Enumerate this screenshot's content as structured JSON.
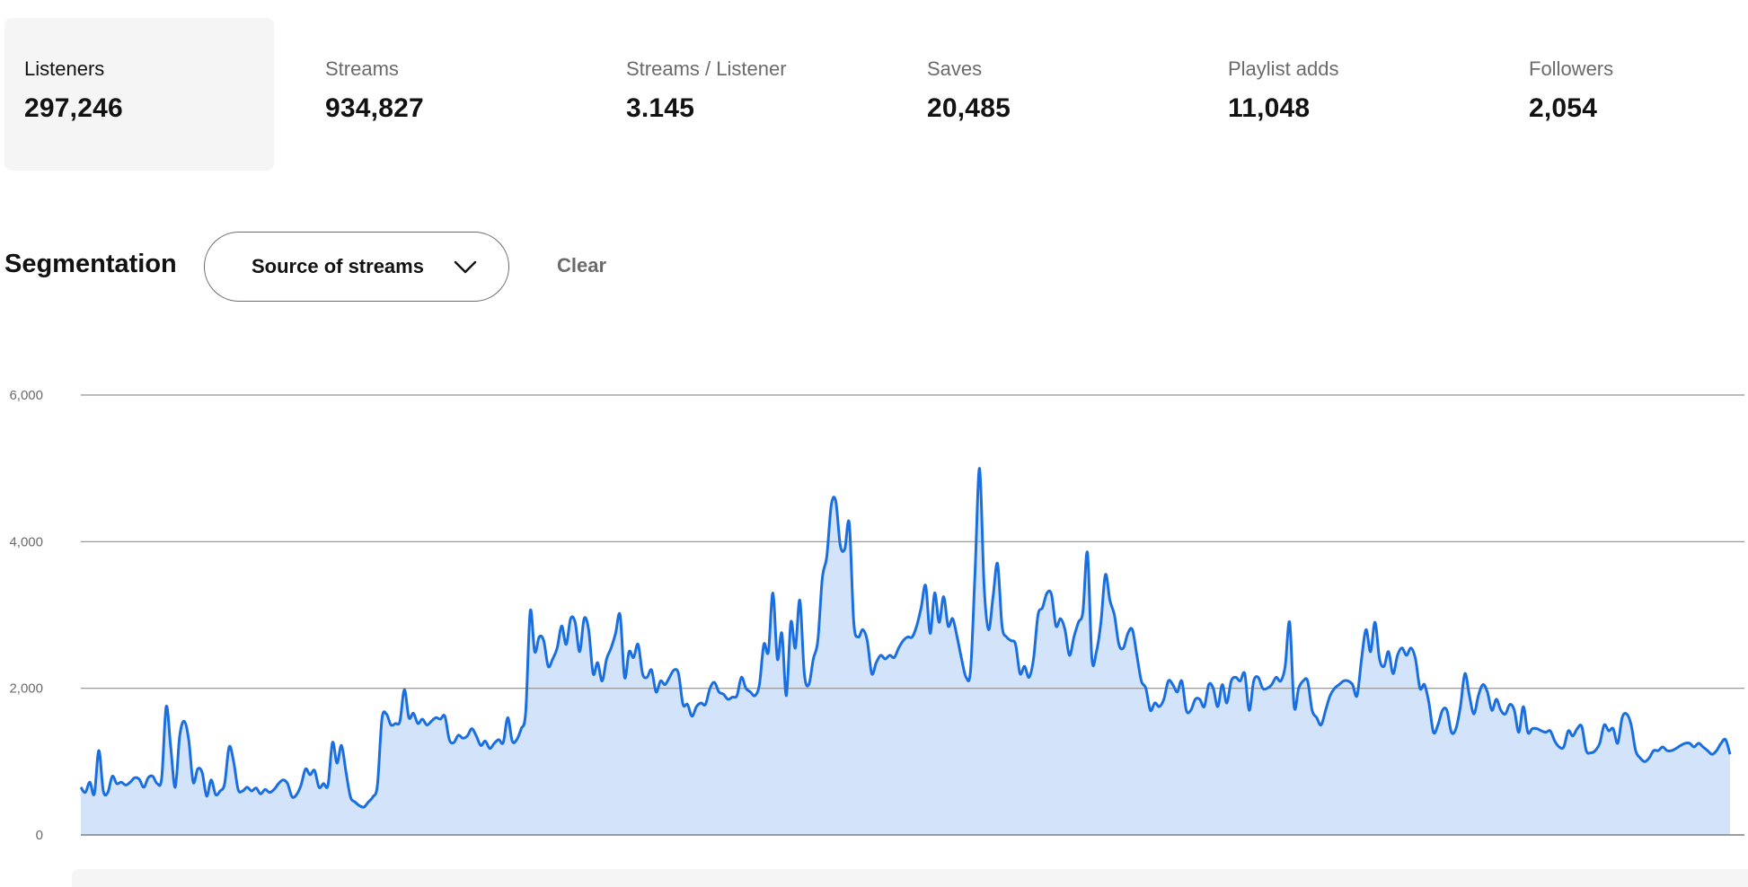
{
  "stats": [
    {
      "label": "Listeners",
      "value": "297,246",
      "selected": true
    },
    {
      "label": "Streams",
      "value": "934,827",
      "selected": false
    },
    {
      "label": "Streams / Listener",
      "value": "3.145",
      "selected": false
    },
    {
      "label": "Saves",
      "value": "20,485",
      "selected": false
    },
    {
      "label": "Playlist adds",
      "value": "11,048",
      "selected": false
    },
    {
      "label": "Followers",
      "value": "2,054",
      "selected": false
    }
  ],
  "segmentation": {
    "title": "Segmentation",
    "select_label": "Source of streams",
    "select_icon": "chevron-down-icon",
    "clear_label": "Clear"
  },
  "chart_data": {
    "type": "area",
    "title": "",
    "xlabel": "",
    "ylabel": "",
    "ylim": [
      0,
      6000
    ],
    "yticks": [
      0,
      2000,
      4000,
      6000
    ],
    "ytick_labels": [
      "0",
      "2,000",
      "4,000",
      "6,000"
    ],
    "grid": true,
    "colors": {
      "line": "#1a6fe0",
      "fill": "#d3e3fa",
      "grid": "#8f8f8f"
    },
    "series": [
      {
        "values": [
          650,
          580,
          720,
          560,
          1150,
          600,
          580,
          800,
          700,
          720,
          680,
          720,
          780,
          760,
          650,
          780,
          800,
          700,
          780,
          1750,
          1200,
          650,
          1350,
          1550,
          1300,
          720,
          900,
          850,
          530,
          750,
          550,
          600,
          700,
          1200,
          1000,
          620,
          600,
          650,
          600,
          640,
          560,
          620,
          580,
          620,
          700,
          750,
          700,
          520,
          550,
          680,
          900,
          820,
          880,
          650,
          700,
          680,
          1260,
          980,
          1220,
          860,
          520,
          450,
          400,
          380,
          450,
          520,
          680,
          1580,
          1650,
          1500,
          1520,
          1550,
          1980,
          1600,
          1660,
          1520,
          1580,
          1500,
          1550,
          1600,
          1580,
          1620,
          1300,
          1260,
          1360,
          1320,
          1350,
          1450,
          1350,
          1220,
          1280,
          1180,
          1250,
          1300,
          1260,
          1600,
          1280,
          1300,
          1450,
          1680,
          3050,
          2500,
          2700,
          2650,
          2300,
          2400,
          2550,
          2850,
          2600,
          2950,
          2900,
          2500,
          2950,
          2800,
          2200,
          2350,
          2100,
          2400,
          2550,
          2750,
          3000,
          2150,
          2500,
          2420,
          2600,
          2200,
          2150,
          2250,
          1950,
          2100,
          2050,
          2150,
          2250,
          2200,
          1780,
          1780,
          1620,
          1750,
          1800,
          1780,
          2000,
          2080,
          1950,
          1920,
          1850,
          1880,
          1900,
          2150,
          2000,
          1950,
          1900,
          2050,
          2600,
          2500,
          3300,
          2400,
          2750,
          1900,
          2900,
          2550,
          3200,
          2200,
          2050,
          2400,
          2650,
          3500,
          3800,
          4500,
          4550,
          3950,
          3900,
          4250,
          2900,
          2700,
          2800,
          2650,
          2200,
          2350,
          2450,
          2400,
          2450,
          2420,
          2550,
          2650,
          2700,
          2700,
          2850,
          3100,
          3400,
          2750,
          3300,
          2900,
          3250,
          2850,
          2950,
          2700,
          2400,
          2150,
          2250,
          3600,
          5000,
          3400,
          2800,
          3250,
          3700,
          2850,
          2700,
          2650,
          2600,
          2200,
          2300,
          2150,
          2400,
          3000,
          3100,
          3300,
          3280,
          2850,
          2950,
          2800,
          2450,
          2700,
          2900,
          3050,
          3850,
          2400,
          2500,
          2900,
          3550,
          3200,
          3000,
          2600,
          2550,
          2750,
          2800,
          2450,
          2100,
          2000,
          1700,
          1800,
          1750,
          1850,
          2100,
          2050,
          1950,
          2100,
          1700,
          1700,
          1850,
          1850,
          1750,
          2050,
          2000,
          1750,
          2050,
          1800,
          2100,
          2150,
          2100,
          2200,
          1700,
          2100,
          2150,
          2000,
          2000,
          2050,
          2150,
          2100,
          2300,
          2900,
          1750,
          2000,
          2100,
          2100,
          1700,
          1600,
          1500,
          1700,
          1900,
          2000,
          2050,
          2100,
          2100,
          2050,
          1900,
          2400,
          2800,
          2500,
          2900,
          2400,
          2300,
          2500,
          2200,
          2450,
          2550,
          2450,
          2550,
          2400,
          2000,
          2050,
          1800,
          1400,
          1500,
          1700,
          1700,
          1400,
          1450,
          1750,
          2200,
          1900,
          1650,
          1900,
          2050,
          1950,
          1700,
          1850,
          1700,
          1650,
          1780,
          1700,
          1400,
          1750,
          1400,
          1450,
          1450,
          1420,
          1400,
          1420,
          1280,
          1200,
          1200,
          1420,
          1350,
          1450,
          1480,
          1150,
          1120,
          1150,
          1250,
          1500,
          1420,
          1450,
          1250,
          1600,
          1650,
          1500,
          1150,
          1050,
          1000,
          1050,
          1150,
          1150,
          1200,
          1150,
          1150,
          1180,
          1220,
          1250,
          1250,
          1200,
          1250,
          1200,
          1150,
          1100,
          1150,
          1250,
          1300,
          1100
        ]
      }
    ]
  }
}
